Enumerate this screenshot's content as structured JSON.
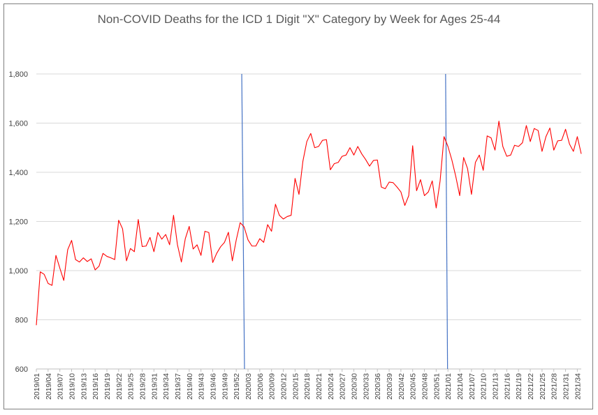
{
  "chart_data": {
    "type": "line",
    "title": "Non-COVID Deaths for the ICD 1 Digit \"X\" Category by Week for Ages 25-44",
    "xlabel": "",
    "ylabel": "",
    "ylim": [
      600,
      1800
    ],
    "yticks": [
      600,
      800,
      1000,
      1200,
      1400,
      1600,
      1800
    ],
    "ytick_labels": [
      "600",
      "800",
      "1,000",
      "1,200",
      "1,400",
      "1,600",
      "1,800"
    ],
    "grid": "horizontal",
    "x_tick_labels": [
      "2019/01",
      "2019/04",
      "2019/07",
      "2019/10",
      "2019/13",
      "2019/16",
      "2019/19",
      "2019/22",
      "2019/25",
      "2019/28",
      "2019/31",
      "2019/34",
      "2019/37",
      "2019/40",
      "2019/43",
      "2019/46",
      "2019/49",
      "2019/52",
      "2020/03",
      "2020/06",
      "2020/09",
      "2020/12",
      "2020/15",
      "2020/18",
      "2020/21",
      "2020/24",
      "2020/27",
      "2020/30",
      "2020/33",
      "2020/36",
      "2020/39",
      "2020/42",
      "2020/45",
      "2020/48",
      "2020/51",
      "2021/01",
      "2021/04",
      "2021/07",
      "2021/10",
      "2021/13",
      "2021/16",
      "2021/19",
      "2021/22",
      "2021/25",
      "2021/28",
      "2021/31",
      "2021/34"
    ],
    "series": [
      {
        "name": "",
        "color": "#ff0000",
        "values": [
          778,
          995,
          985,
          948,
          940,
          1062,
          1010,
          960,
          1085,
          1123,
          1045,
          1035,
          1052,
          1037,
          1048,
          1003,
          1018,
          1070,
          1058,
          1052,
          1045,
          1205,
          1170,
          1040,
          1090,
          1077,
          1208,
          1098,
          1100,
          1135,
          1077,
          1155,
          1128,
          1147,
          1105,
          1225,
          1105,
          1035,
          1130,
          1180,
          1088,
          1105,
          1062,
          1160,
          1155,
          1033,
          1070,
          1097,
          1115,
          1156,
          1040,
          1125,
          1195,
          1178,
          1125,
          1100,
          1100,
          1130,
          1115,
          1187,
          1160,
          1270,
          1225,
          1210,
          1220,
          1225,
          1375,
          1310,
          1445,
          1525,
          1558,
          1500,
          1505,
          1530,
          1533,
          1410,
          1435,
          1440,
          1465,
          1470,
          1500,
          1470,
          1505,
          1475,
          1452,
          1425,
          1448,
          1450,
          1340,
          1333,
          1360,
          1358,
          1340,
          1320,
          1265,
          1305,
          1508,
          1325,
          1370,
          1305,
          1320,
          1365,
          1255,
          1365,
          1545,
          1505,
          1450,
          1383,
          1305,
          1460,
          1415,
          1310,
          1440,
          1470,
          1408,
          1548,
          1540,
          1490,
          1608,
          1505,
          1465,
          1470,
          1510,
          1505,
          1520,
          1590,
          1525,
          1578,
          1570,
          1485,
          1545,
          1580,
          1490,
          1528,
          1530,
          1575,
          1515,
          1485,
          1545,
          1475
        ]
      }
    ],
    "vertical_markers": [
      {
        "label": "",
        "x_top": 52.4,
        "x_bottom": 53.1,
        "color": "#4472c4"
      },
      {
        "label": "",
        "x_top": 104.4,
        "x_bottom": 104.9,
        "color": "#4472c4"
      }
    ]
  }
}
